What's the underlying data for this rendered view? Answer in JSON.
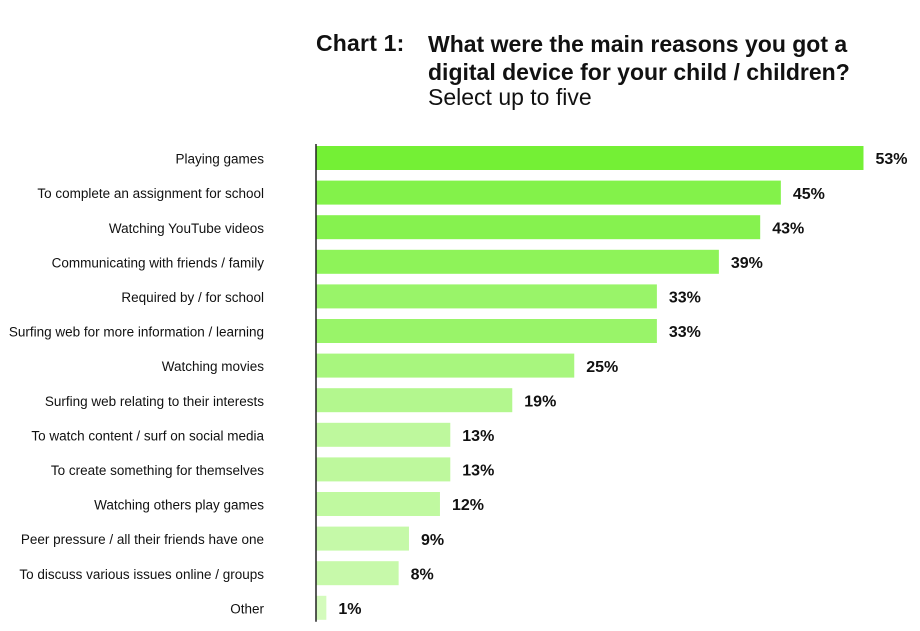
{
  "header": {
    "chart_label": "Chart 1:",
    "title": "What were the main reasons you got a digital device for your child / children?",
    "subtitle": "Select up to five"
  },
  "chart_data": {
    "type": "bar",
    "orientation": "horizontal",
    "title": "What were the main reasons you got a digital device for your child / children?",
    "subtitle": "Select up to five",
    "categories": [
      "Playing games",
      "To complete an assignment for school",
      "Watching YouTube videos",
      "Communicating with friends / family",
      "Required by / for school",
      "Surfing web for more information / learning",
      "Watching movies",
      "Surfing web relating to their interests",
      "To watch content / surf on social media",
      "To create something for themselves",
      "Watching others play games",
      "Peer pressure / all their friends have one",
      "To discuss various issues online / groups",
      "Other"
    ],
    "values": [
      53,
      45,
      43,
      39,
      33,
      33,
      25,
      19,
      13,
      13,
      12,
      9,
      8,
      1
    ],
    "value_labels": [
      "53%",
      "45%",
      "43%",
      "39%",
      "33%",
      "33%",
      "25%",
      "19%",
      "13%",
      "13%",
      "12%",
      "9%",
      "8%",
      "1%"
    ],
    "unit": "%",
    "xlabel": "",
    "ylabel": "",
    "xlim": [
      0,
      53
    ],
    "grid": false,
    "legend": "none",
    "colors": {
      "bar_max": "#74f035",
      "bar_min": "#d6fbbf",
      "axis": "#222222"
    }
  }
}
